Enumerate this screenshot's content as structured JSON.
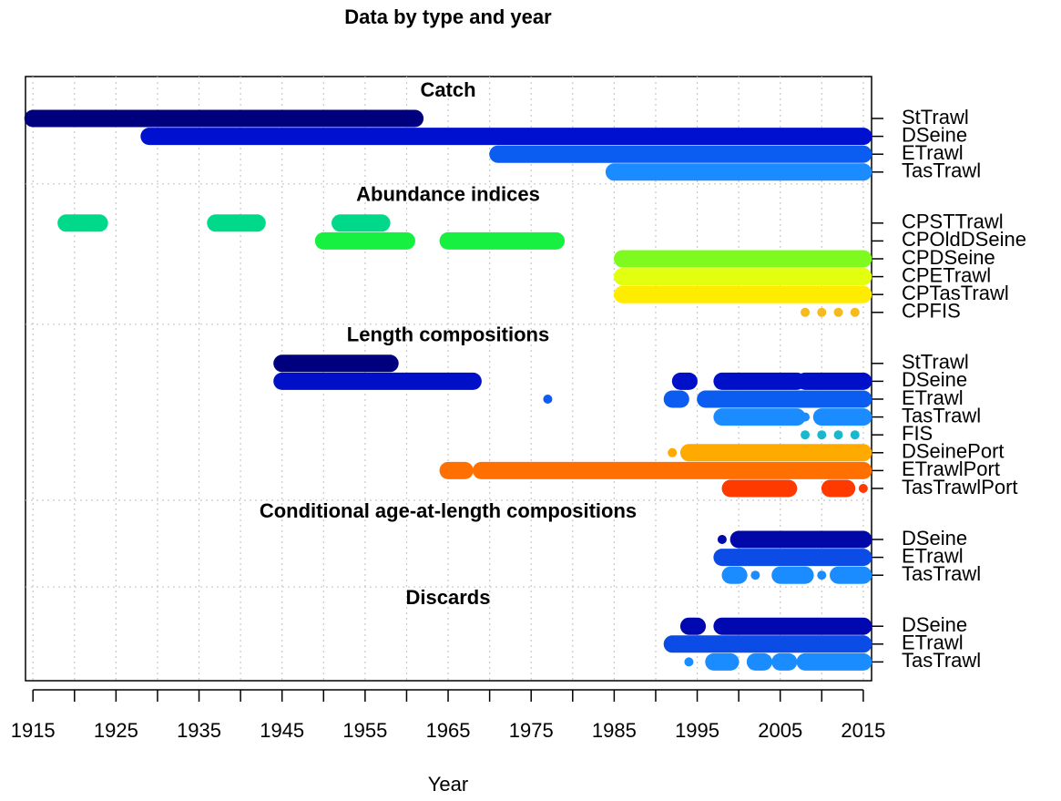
{
  "chart_data": {
    "type": "timeline",
    "title": "Data by type and year",
    "x_label": "Year",
    "xlim": [
      1914.1,
      2016
    ],
    "xticks": [
      1915,
      1925,
      1935,
      1945,
      1955,
      1965,
      1975,
      1985,
      1995,
      2005,
      2015
    ],
    "xticks_minor": [
      1920,
      1930,
      1940,
      1950,
      1960,
      1970,
      1980,
      1990,
      2000,
      2010
    ],
    "grid": true,
    "groups": [
      {
        "name": "Catch",
        "rows": [
          {
            "name": "StTrawl",
            "color": "#00007f",
            "segments": [
              [
                1915,
                1961
              ]
            ],
            "points": []
          },
          {
            "name": "DSeine",
            "color": "#0010d0",
            "segments": [
              [
                1929,
                2015
              ]
            ],
            "points": []
          },
          {
            "name": "ETrawl",
            "color": "#0b5cf0",
            "segments": [
              [
                1971,
                2015
              ]
            ],
            "points": []
          },
          {
            "name": "TasTrawl",
            "color": "#1a8cff",
            "segments": [
              [
                1985,
                2015
              ]
            ],
            "points": []
          }
        ]
      },
      {
        "name": "Abundance indices",
        "rows": [
          {
            "name": "CPSTTrawl",
            "color": "#00d98a",
            "segments": [
              [
                1919,
                1923
              ],
              [
                1937,
                1942
              ],
              [
                1952,
                1957
              ]
            ],
            "points": []
          },
          {
            "name": "CPOldDSeine",
            "color": "#17f041",
            "segments": [
              [
                1950,
                1960
              ],
              [
                1965,
                1978
              ]
            ],
            "points": []
          },
          {
            "name": "CPDSeine",
            "color": "#7ffa1f",
            "segments": [
              [
                1986,
                2015
              ]
            ],
            "points": []
          },
          {
            "name": "CPETrawl",
            "color": "#e3ff10",
            "segments": [
              [
                1986,
                2015
              ]
            ],
            "points": []
          },
          {
            "name": "CPTasTrawl",
            "color": "#ffec00",
            "segments": [
              [
                1986,
                2015
              ]
            ],
            "points": []
          },
          {
            "name": "CPFIS",
            "color": "#f5b921",
            "segments": [],
            "points": [
              2008,
              2010,
              2012,
              2014
            ]
          }
        ]
      },
      {
        "name": "Length compositions",
        "rows": [
          {
            "name": "StTrawl",
            "color": "#00007f",
            "segments": [
              [
                1945,
                1958
              ]
            ],
            "points": []
          },
          {
            "name": "DSeine",
            "color": "#0010c8",
            "segments": [
              [
                1945,
                1968
              ],
              [
                1993,
                1994
              ],
              [
                1998,
                2007
              ],
              [
                2008,
                2015
              ]
            ],
            "points": []
          },
          {
            "name": "ETrawl",
            "color": "#0b5cf0",
            "segments": [
              [
                1992,
                1993
              ],
              [
                1996,
                2015
              ]
            ],
            "points": [
              1977
            ]
          },
          {
            "name": "TasTrawl",
            "color": "#1a8cff",
            "segments": [
              [
                1998,
                2007
              ],
              [
                2010,
                2015
              ]
            ],
            "points": [
              2008
            ]
          },
          {
            "name": "FIS",
            "color": "#1ab8d0",
            "segments": [],
            "points": [
              2008,
              2010,
              2012,
              2014
            ]
          },
          {
            "name": "DSeinePort",
            "color": "#ffaa00",
            "segments": [
              [
                1994,
                2015
              ]
            ],
            "points": [
              1992
            ]
          },
          {
            "name": "ETrawlPort",
            "color": "#ff7000",
            "segments": [
              [
                1965,
                1967
              ],
              [
                1969,
                2015
              ]
            ],
            "points": []
          },
          {
            "name": "TasTrawlPort",
            "color": "#ff3a00",
            "segments": [
              [
                1999,
                2006
              ],
              [
                2011,
                2013
              ]
            ],
            "points": [
              2015
            ]
          }
        ]
      },
      {
        "name": "Conditional age-at-length compositions",
        "rows": [
          {
            "name": "DSeine",
            "color": "#0008a8",
            "segments": [
              [
                2000,
                2015
              ]
            ],
            "points": [
              1998
            ]
          },
          {
            "name": "ETrawl",
            "color": "#0b4ce6",
            "segments": [
              [
                1998,
                2015
              ]
            ],
            "points": []
          },
          {
            "name": "TasTrawl",
            "color": "#1a8cff",
            "segments": [
              [
                1999,
                2000
              ],
              [
                2005,
                2008
              ],
              [
                2012,
                2015
              ]
            ],
            "points": [
              2002,
              2010
            ]
          }
        ]
      },
      {
        "name": "Discards",
        "rows": [
          {
            "name": "DSeine",
            "color": "#0008b0",
            "segments": [
              [
                1994,
                1995
              ],
              [
                1998,
                2015
              ]
            ],
            "points": []
          },
          {
            "name": "ETrawl",
            "color": "#0b4ce6",
            "segments": [
              [
                1992,
                2015
              ]
            ],
            "points": []
          },
          {
            "name": "TasTrawl",
            "color": "#1a8cff",
            "segments": [
              [
                1997,
                1999
              ],
              [
                2002,
                2003
              ],
              [
                2005,
                2006
              ],
              [
                2008,
                2015
              ]
            ],
            "points": [
              1994
            ]
          }
        ]
      }
    ]
  }
}
